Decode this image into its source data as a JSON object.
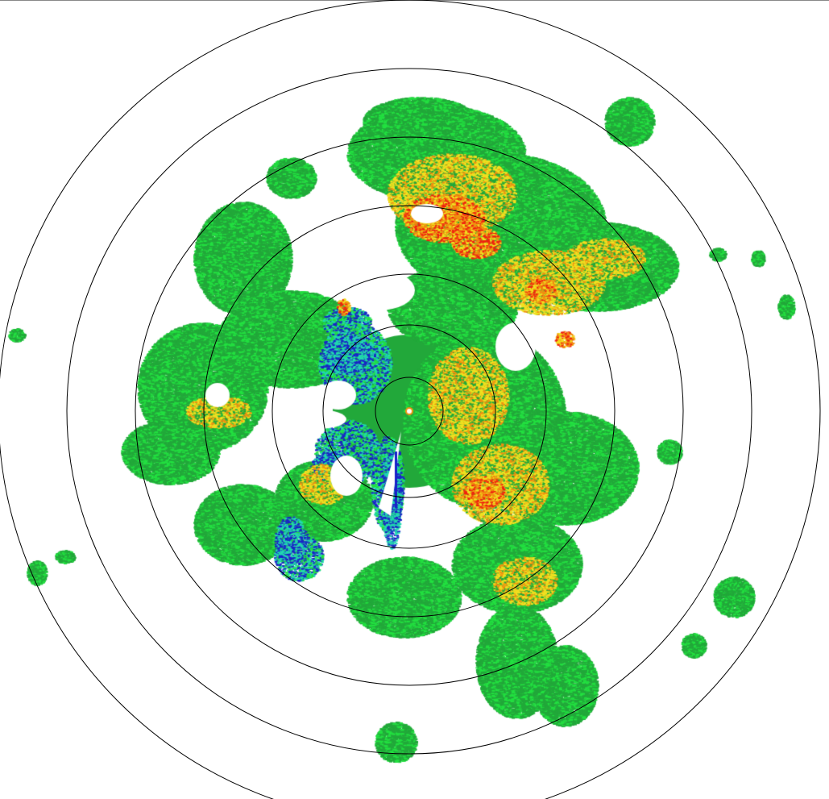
{
  "display": {
    "type": "radar-ppi-reflectivity",
    "background": "#ffffff",
    "ring_color": "#000000",
    "range_rings": 7
  },
  "palette": {
    "weak_blue": "#1a22c8",
    "light_cyan": "#22d8b0",
    "light_green": "#22e040",
    "green": "#22a83a",
    "yellow": "#f0e020",
    "orange": "#f09010",
    "red": "#f02010"
  }
}
